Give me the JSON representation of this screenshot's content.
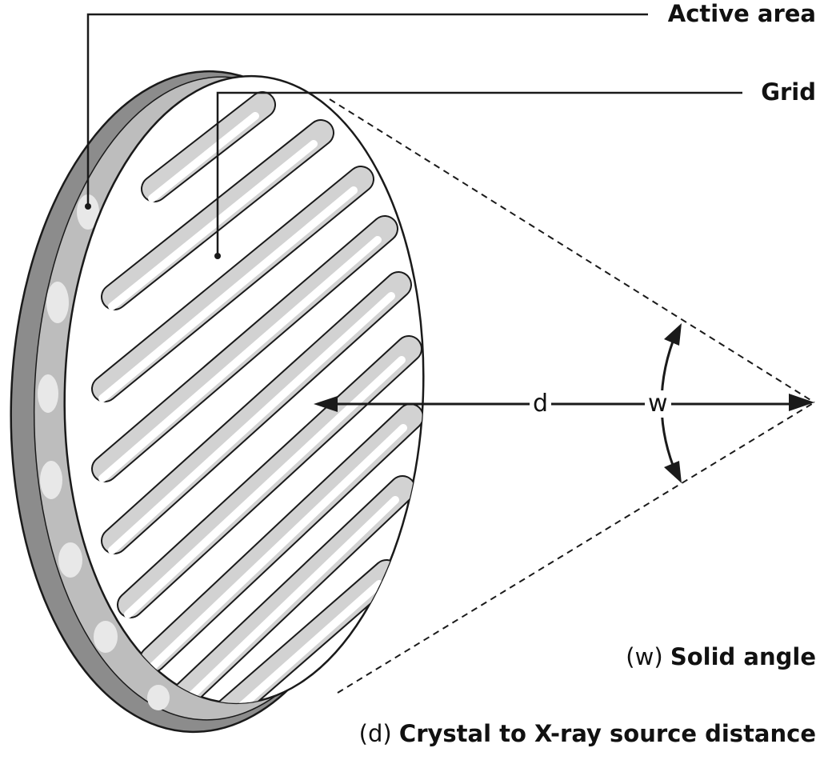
{
  "labels": {
    "active_area": "Active area",
    "grid": "Grid",
    "solid_angle_symbol": "(w)",
    "solid_angle_text": "Solid angle",
    "distance_symbol": "(d)",
    "distance_text": "Crystal to X-ray source distance"
  },
  "symbols": {
    "d": "d",
    "w": "w"
  },
  "colors": {
    "rim_dark": "#8c8c8c",
    "rim_light": "#bdbdbd",
    "slot_shadow": "#d2d2d2",
    "face": "#ffffff",
    "line": "#1a1a1a"
  }
}
